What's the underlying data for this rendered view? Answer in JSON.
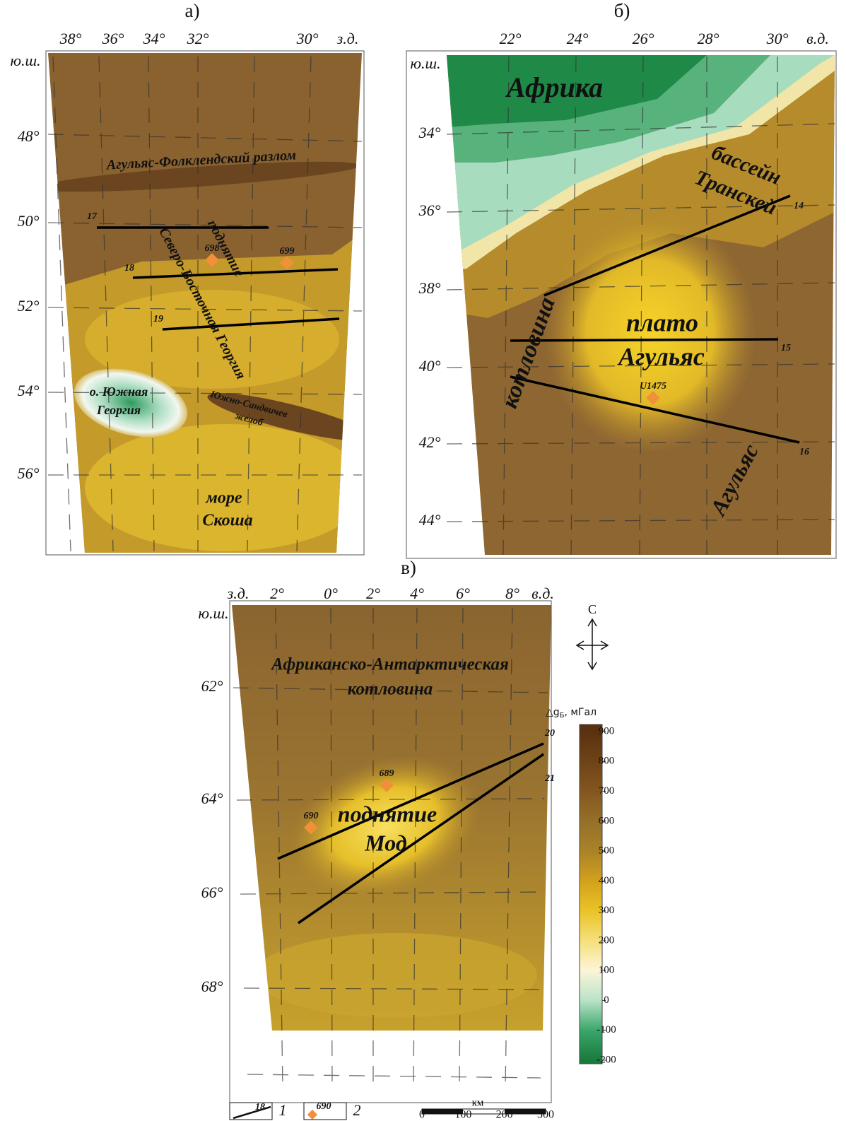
{
  "panels": [
    {
      "label": "а)",
      "lon_labels": [
        "38°",
        "36°",
        "34°",
        "32°",
        "30°",
        "з.д."
      ],
      "lat_labels": [
        "ю.ш.",
        "48°",
        "50°",
        "52°",
        "54°",
        "56°"
      ],
      "place_names": [
        "Агульяс-Фолклендский разлом",
        "Северо-Восточная Георгия",
        "поднятие",
        "о. Южная",
        "Георгия",
        "Южно-Сандвичев",
        "желоб",
        "море",
        "Скоша"
      ],
      "profiles": [
        "17",
        "18",
        "19"
      ],
      "sites": [
        "698",
        "699"
      ]
    },
    {
      "label": "б)",
      "lon_labels": [
        "22°",
        "24°",
        "26°",
        "28°",
        "30°",
        "в.д."
      ],
      "lat_labels": [
        "ю.ш.",
        "34°",
        "36°",
        "38°",
        "40°",
        "42°",
        "44°"
      ],
      "place_names": [
        "Африка",
        "бассейн",
        "Транскей",
        "плато",
        "Агульяс",
        "котловина",
        "Агульяс"
      ],
      "profiles": [
        "14",
        "15",
        "16"
      ],
      "sites": [
        "U1475"
      ]
    },
    {
      "label": "в)",
      "lon_labels": [
        "з.д.",
        "2°",
        "0°",
        "2°",
        "4°",
        "6°",
        "8°",
        "в.д."
      ],
      "lat_labels": [
        "ю.ш.",
        "62°",
        "64°",
        "66°",
        "68°"
      ],
      "place_names": [
        "Африканско-Антарктическая",
        "котловина",
        "поднятие",
        "Мод"
      ],
      "profiles": [
        "20",
        "21"
      ],
      "sites": [
        "689",
        "690"
      ]
    }
  ],
  "compass": "С",
  "colorbar": {
    "title": "△g",
    "title_sub": "Б",
    "title_unit": ", мГал",
    "ticks": [
      900,
      800,
      700,
      600,
      500,
      400,
      300,
      200,
      100,
      0,
      -100,
      -200
    ]
  },
  "legend": [
    {
      "number": "18",
      "label": "1"
    },
    {
      "number": "690",
      "label": "2"
    }
  ],
  "scale_bar": {
    "unit": "км",
    "ticks": [
      0,
      100,
      200,
      300
    ]
  }
}
